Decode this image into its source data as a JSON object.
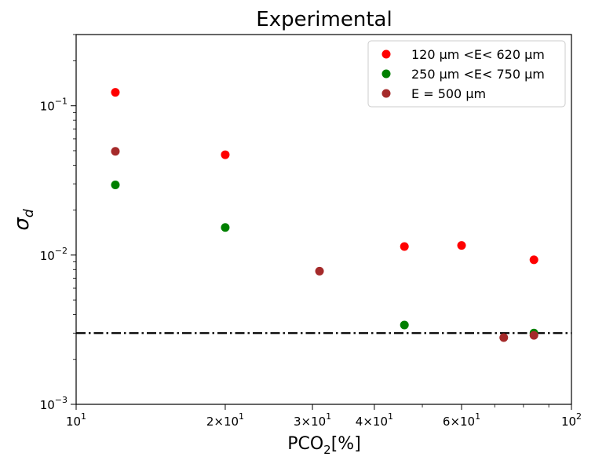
{
  "chart_data": {
    "type": "scatter",
    "title": "Experimental",
    "xlabel": "PCO₂[%]",
    "ylabel": "σd",
    "xscale": "log",
    "yscale": "log",
    "xlim": [
      10,
      100
    ],
    "ylim": [
      0.001,
      0.3
    ],
    "x_ticks": [
      {
        "value": 10,
        "base": "10",
        "exp": "1"
      },
      {
        "value": 20,
        "base": "2×10",
        "exp": "1"
      },
      {
        "value": 30,
        "base": "3×10",
        "exp": "1"
      },
      {
        "value": 40,
        "base": "4×10",
        "exp": "1"
      },
      {
        "value": 60,
        "base": "6×10",
        "exp": "1"
      },
      {
        "value": 100,
        "base": "10",
        "exp": "2"
      }
    ],
    "x_minor_ticks": [
      50,
      70,
      80,
      90
    ],
    "y_ticks": [
      {
        "value": 0.001,
        "base": "10",
        "exp": "−3"
      },
      {
        "value": 0.01,
        "base": "10",
        "exp": "−2"
      },
      {
        "value": 0.1,
        "base": "10",
        "exp": "−1"
      }
    ],
    "y_minor_ticks": [
      0.002,
      0.003,
      0.004,
      0.005,
      0.006,
      0.007,
      0.008,
      0.009,
      0.02,
      0.03,
      0.04,
      0.05,
      0.06,
      0.07,
      0.08,
      0.09,
      0.2,
      0.3
    ],
    "reference_line": {
      "y": 0.003,
      "style": "dash-dot",
      "color": "#000000"
    },
    "legend": {
      "position": "top-right"
    },
    "series": [
      {
        "name": "120 μm <E< 620 μm",
        "color": "#ff0000",
        "points": [
          [
            12,
            0.123
          ],
          [
            20,
            0.047
          ],
          [
            46,
            0.0114
          ],
          [
            60,
            0.0116
          ],
          [
            84,
            0.0093
          ]
        ]
      },
      {
        "name": "250 μm <E< 750 μm",
        "color": "#008000",
        "points": [
          [
            12,
            0.0295
          ],
          [
            20,
            0.0153
          ],
          [
            46,
            0.0034
          ],
          [
            84,
            0.003
          ]
        ]
      },
      {
        "name": "E = 500 μm",
        "color": "#a52a2a",
        "points": [
          [
            12,
            0.0495
          ],
          [
            31,
            0.0078
          ],
          [
            73,
            0.0028
          ],
          [
            84,
            0.0029
          ]
        ]
      }
    ]
  }
}
